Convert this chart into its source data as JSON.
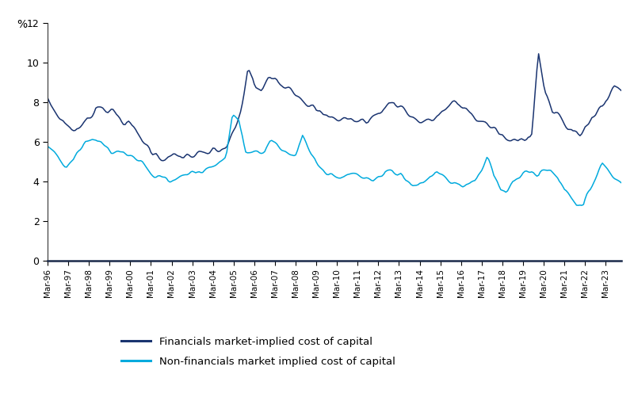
{
  "ylabel": "%",
  "ylim": [
    0,
    12
  ],
  "yticks": [
    0,
    2,
    4,
    6,
    8,
    10,
    12
  ],
  "line1_label": "Financials market-implied cost of capital",
  "line1_color": "#1a3470",
  "line2_label": "Non-financials market implied cost of capital",
  "line2_color": "#00aadd",
  "header_color": "#1a4f8a",
  "bg_color": "#ffffff",
  "x_tick_labels": [
    "Mar-96",
    "Mar-97",
    "Mar-98",
    "Mar-99",
    "Mar-00",
    "Mar-01",
    "Mar-02",
    "Mar-03",
    "Mar-04",
    "Mar-05",
    "Mar-06",
    "Mar-07",
    "Mar-08",
    "Mar-09",
    "Mar-10",
    "Mar-11",
    "Mar-12",
    "Mar-13",
    "Mar-14",
    "Mar-15",
    "Mar-16",
    "Mar-17",
    "Mar-18",
    "Mar-19",
    "Mar-20",
    "Mar-21",
    "Mar-22",
    "Mar-23"
  ],
  "fin_keys": [
    8.05,
    7.6,
    7.1,
    6.8,
    6.6,
    6.8,
    7.2,
    7.8,
    7.8,
    7.6,
    7.3,
    7.1,
    6.8,
    6.4,
    6.0,
    5.5,
    5.3,
    5.2,
    5.2,
    5.2,
    5.3,
    5.3,
    5.3,
    5.4,
    5.5,
    5.6,
    5.8,
    6.5,
    7.5,
    9.8,
    8.8,
    8.5,
    9.2,
    9.3,
    9.0,
    8.8,
    8.5,
    8.2,
    7.8,
    7.5,
    7.3,
    7.2,
    7.2,
    7.2,
    7.1,
    7.0,
    7.1,
    7.2,
    7.5,
    7.8,
    8.1,
    7.8,
    7.5,
    7.2,
    7.0,
    7.0,
    7.2,
    7.5,
    7.7,
    8.0,
    7.8,
    7.5,
    7.2,
    7.0,
    6.8,
    6.5,
    6.2,
    6.0,
    6.0,
    6.2,
    6.5,
    10.5,
    8.5,
    7.5,
    7.2,
    6.8,
    6.5,
    6.5,
    6.8,
    7.2,
    7.8,
    8.2,
    8.8,
    8.8
  ],
  "nonfin_keys": [
    5.8,
    5.4,
    4.9,
    4.8,
    5.0,
    5.5,
    6.0,
    6.2,
    6.0,
    5.8,
    5.5,
    5.5,
    5.4,
    5.3,
    5.1,
    4.8,
    4.5,
    4.3,
    4.2,
    4.0,
    4.1,
    4.3,
    4.4,
    4.5,
    4.5,
    4.5,
    4.8,
    5.1,
    5.3,
    7.5,
    7.2,
    5.5,
    5.4,
    5.5,
    5.5,
    6.2,
    5.9,
    5.6,
    5.3,
    5.5,
    6.3,
    5.6,
    5.0,
    4.6,
    4.4,
    4.3,
    4.2,
    4.3,
    4.4,
    4.3,
    4.2,
    4.0,
    4.2,
    4.5,
    4.5,
    4.3,
    4.2,
    4.0,
    3.8,
    4.0,
    4.3,
    4.5,
    4.3,
    4.1,
    3.9,
    3.8,
    3.9,
    4.1,
    4.5,
    5.3,
    4.2,
    3.6,
    3.5,
    4.0,
    4.2,
    4.4,
    4.5,
    4.3,
    4.5,
    4.5,
    4.2,
    3.5,
    3.2,
    2.8,
    2.7,
    3.5,
    4.2,
    4.8,
    4.5,
    4.2,
    4.0
  ]
}
